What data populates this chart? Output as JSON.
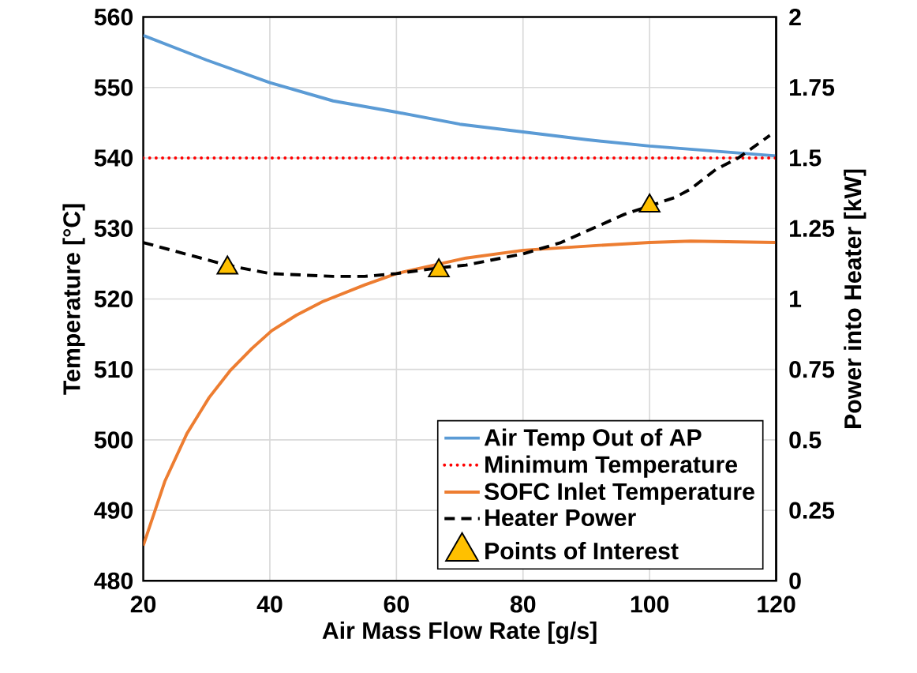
{
  "chart_data": {
    "type": "line",
    "xlabel": "Air Mass Flow Rate [g/s]",
    "ylabel": "Temperature [°C]",
    "y2label": "Power into Heater [kW]",
    "xlim": [
      20,
      120
    ],
    "xticks": [
      20,
      40,
      60,
      80,
      100,
      120
    ],
    "ylim": [
      480,
      560
    ],
    "yticks": [
      480,
      490,
      500,
      510,
      520,
      530,
      540,
      550,
      560
    ],
    "y2lim": [
      0,
      2
    ],
    "y2ticks": [
      0,
      0.25,
      0.5,
      0.75,
      1,
      1.25,
      1.5,
      1.75,
      2
    ],
    "grid": true,
    "legend": "bottom right",
    "series": [
      {
        "name": "Air Temp Out of AP",
        "color": "#5b9bd5",
        "line_style": "solid",
        "marker": "none",
        "x": [
          20,
          30,
          40,
          50,
          60,
          70,
          80,
          90,
          100,
          110,
          120
        ],
        "values": [
          557.4,
          553.9,
          550.7,
          548.1,
          546.5,
          544.8,
          543.7,
          542.6,
          541.7,
          541.0,
          540.3
        ]
      },
      {
        "name": "Minimum Temperature",
        "color": "#ff0000",
        "line_style": "dotted",
        "marker": "none",
        "x": [
          20,
          120
        ],
        "values": [
          540,
          540
        ]
      },
      {
        "name": "SOFC Inlet Temperature",
        "color": "#ed7d31",
        "line_style": "solid",
        "marker": "none",
        "x": [
          20,
          23.4,
          26.9,
          30.4,
          33.8,
          37.2,
          40.3,
          44.2,
          48.3,
          55,
          60,
          71,
          80,
          92,
          100,
          106.5,
          120
        ],
        "values": [
          485,
          494.1,
          500.9,
          506.0,
          509.9,
          513.0,
          515.5,
          517.7,
          519.6,
          522,
          523.6,
          525.8,
          526.9,
          527.6,
          528.0,
          528.2,
          528.0
        ]
      },
      {
        "name": "Heater Power",
        "axis": "y2",
        "color": "#000000",
        "line_style": "dashed",
        "marker": "none",
        "x": [
          20,
          33.2,
          40,
          50,
          55,
          60,
          66.6,
          71,
          80,
          86,
          92,
          96,
          104,
          106.5,
          110.5,
          114,
          119
        ],
        "values": [
          1.2,
          1.12,
          1.09,
          1.08,
          1.08,
          1.09,
          1.11,
          1.12,
          1.16,
          1.2,
          1.26,
          1.3,
          1.36,
          1.39,
          1.46,
          1.5,
          1.58
        ]
      },
      {
        "name": "Points of Interest",
        "type": "scatter",
        "axis": "y2",
        "color": "#ffc000",
        "marker": "triangle",
        "x": [
          33.3,
          66.7,
          100
        ],
        "values": [
          1.11,
          1.1,
          1.33
        ]
      }
    ]
  }
}
